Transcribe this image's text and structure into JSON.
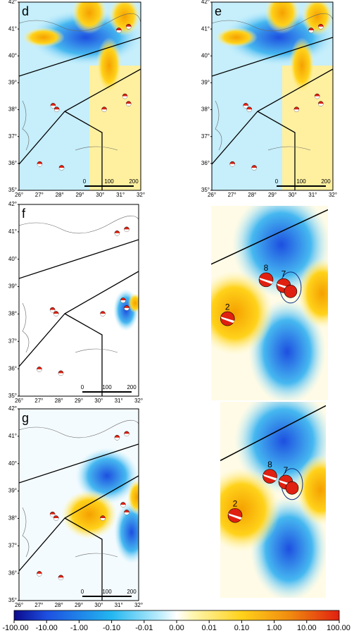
{
  "panels": [
    {
      "label": "d"
    },
    {
      "label": "e"
    },
    {
      "label": "f"
    },
    {
      "label": "g"
    }
  ],
  "latitude_labels": [
    "42°",
    "41°",
    "40°",
    "39°",
    "38°",
    "37°",
    "36°",
    "35°"
  ],
  "longitude_labels": [
    "26°",
    "27°",
    "28°",
    "29°",
    "30°",
    "31°",
    "32°"
  ],
  "scale_labels": [
    "0",
    "100",
    "200"
  ],
  "zoom_event_labels": [
    "8",
    "7",
    "2"
  ],
  "colorbar_labels": [
    "-100.00",
    "-10.00",
    "-1.00",
    "-0.10",
    "-0.01",
    "0.00",
    "0.01",
    "0.10",
    "1.00",
    "10.00",
    "100.00"
  ]
}
